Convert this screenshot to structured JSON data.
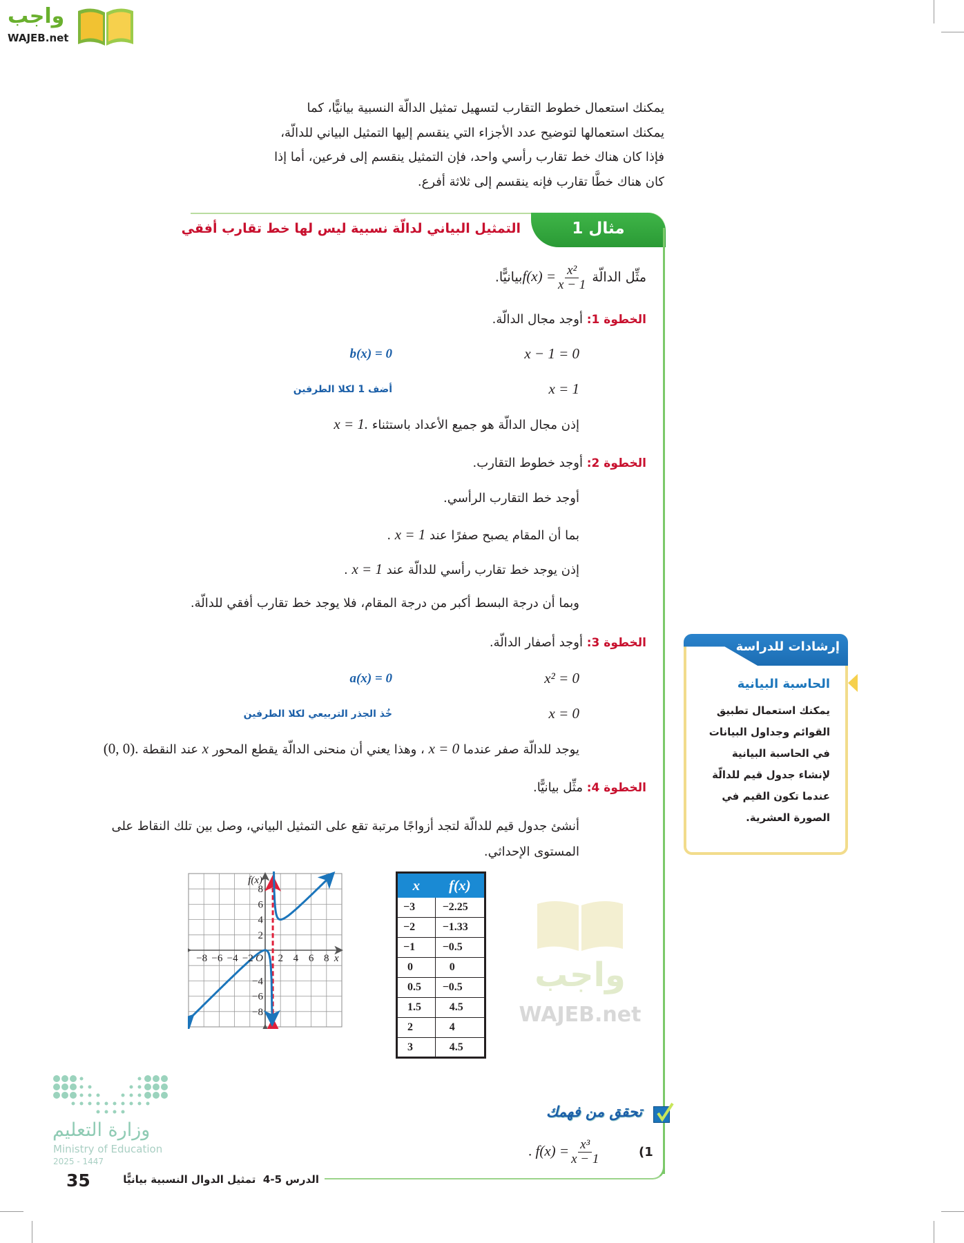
{
  "logo": {
    "arabic": "واجب",
    "latin": "WAJEB.net"
  },
  "watermark": {
    "arabic": "واجب",
    "latin": "WAJEB.net"
  },
  "intro": {
    "lines": [
      "يمكنك استعمال خطوط التقارب لتسهيل تمثيل الدالّة النسبية بيانيًّا، كما",
      "يمكنك استعمالها لتوضيح عدد الأجزاء التي ينقسم إليها التمثيل البياني للدالّة،",
      "فإذا كان هناك خط تقارب رأسي واحد، فإن التمثيل ينقسم إلى فرعين، أما إذا",
      "كان هناك خطَّا تقارب فإنه ينقسم إلى ثلاثة أفرع."
    ]
  },
  "example": {
    "label": "مثال 1",
    "title": "التمثيل البياني لدالّة نسبية ليس لها خط تقارب أفقي",
    "prompt_before": "مثِّل الدالّة",
    "fx": "f(x) =",
    "num": "x²",
    "den": "x − 1",
    "prompt_after": "بيانيًّا.",
    "steps": [
      {
        "label": "الخطوة 1:",
        "text": "أوجد مجال الدالّة."
      },
      {
        "label": "الخطوة 2:",
        "text": "أوجد خطوط التقارب."
      },
      {
        "label": "الخطوة 3:",
        "text": "أوجد أصفار الدالّة."
      },
      {
        "label": "الخطوة 4:",
        "text": "مثِّل بيانيًّا."
      }
    ],
    "step1": {
      "eq1": "x − 1 = 0",
      "note1": "b(x) = 0",
      "eq2": "x = 1",
      "note2": "أضف 1 لكلا الطرفين",
      "conclusion": "إذن مجال الدالّة هو جميع الأعداد باستثناء",
      "conclusion_math": "x = 1."
    },
    "step2": {
      "line1": "أوجد خط التقارب الرأسي.",
      "line2": "بما أن المقام يصبح صفرًا عند",
      "line2_math": "x = 1",
      "line2_end": ".",
      "line3": "إذن يوجد خط تقارب رأسي للدالّة عند",
      "line3_math": "x = 1",
      "line3_end": ".",
      "line4": "وبما أن درجة البسط أكبر من درجة المقام، فلا يوجد خط تقارب أفقي للدالّة."
    },
    "step3": {
      "eq1": "x² = 0",
      "note1": "a(x) = 0",
      "eq2": "x = 0",
      "note2": "خُذ الجذر التربيعي لكلا الطرفين",
      "c1": "يوجد للدالّة صفر عندما",
      "c_math1": "x = 0",
      "c2": "، وهذا يعني أن منحنى الدالّة يقطع المحور",
      "c_math2": "x",
      "c3": "عند النقطة",
      "c_math3": "(0, 0)."
    },
    "step4": {
      "text": "أنشئ جدول قيم للدالّة لتجد أزواجًا مرتبة تقع على التمثيل البياني، وصل بين تلك النقاط على المستوى الإحداثي."
    }
  },
  "graph": {
    "function": "x^2/(x-1)",
    "x_range": [
      -10,
      10
    ],
    "y_range": [
      -10,
      10
    ],
    "x_ticks": [
      "−8",
      "−6",
      "−4",
      "−2",
      "2",
      "4",
      "6",
      "8"
    ],
    "y_ticks": [
      "8",
      "6",
      "4",
      "2",
      "−4",
      "−6",
      "−8"
    ],
    "origin_label": "O",
    "x_label": "x",
    "y_label": "f(x)",
    "vertical_asymptote": 1,
    "curve_color": "#1b75bb",
    "asymptote_color": "#e0203a"
  },
  "table": {
    "headers": [
      "x",
      "f(x)"
    ],
    "rows": [
      [
        "−3",
        "−2.25"
      ],
      [
        "−2",
        "−1.33"
      ],
      [
        "−1",
        "−0.5"
      ],
      [
        "0",
        "0"
      ],
      [
        "0.5",
        "−0.5"
      ],
      [
        "1.5",
        "4.5"
      ],
      [
        "2",
        "4"
      ],
      [
        "3",
        "4.5"
      ]
    ]
  },
  "sidebar": {
    "header": "إرشادات للدراسة",
    "title": "الحاسبة البيانية",
    "lines": [
      "يمكنك استعمال تطبيق",
      "القوائم وجداول البيانات",
      "في الحاسبة البيانية",
      "لإنشاء جدول قيم للدالّة",
      "عندما تكون القيم في",
      "الصورة العشرية."
    ]
  },
  "check": {
    "title": "تحقق من فهمك",
    "item_no": "(1",
    "fx": "f(x) =",
    "num": "x³",
    "den": "x − 1",
    "end": "."
  },
  "footer": {
    "page": "35",
    "lesson": "الدرس 5-4",
    "title": "تمثيل الدوال النسبية بيانيًّا"
  },
  "ministry": {
    "arabic": "وزارة التعليم",
    "english": "Ministry of Education",
    "year": "2025 - 1447"
  },
  "colors": {
    "green": "#3aa83a",
    "red": "#c8102e",
    "blue": "#1b5fa8",
    "table_header": "#1a8ad4",
    "sidebar_border": "#f2dc8c"
  }
}
